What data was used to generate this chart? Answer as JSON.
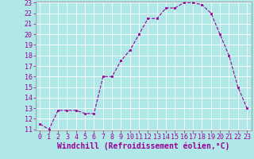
{
  "x": [
    0,
    1,
    2,
    3,
    4,
    5,
    6,
    7,
    8,
    9,
    10,
    11,
    12,
    13,
    14,
    15,
    16,
    17,
    18,
    19,
    20,
    21,
    22,
    23
  ],
  "y": [
    11.5,
    11.0,
    12.8,
    12.8,
    12.8,
    12.5,
    12.5,
    16.0,
    16.0,
    17.5,
    18.5,
    20.0,
    21.5,
    21.5,
    22.5,
    22.5,
    23.0,
    23.0,
    22.8,
    22.0,
    20.0,
    18.0,
    15.0,
    13.0
  ],
  "xlabel": "Windchill (Refroidissement éolien,°C)",
  "ylim_min": 11,
  "ylim_max": 23,
  "xlim_min": -0.5,
  "xlim_max": 23.5,
  "yticks": [
    11,
    12,
    13,
    14,
    15,
    16,
    17,
    18,
    19,
    20,
    21,
    22,
    23
  ],
  "xticks": [
    0,
    1,
    2,
    3,
    4,
    5,
    6,
    7,
    8,
    9,
    10,
    11,
    12,
    13,
    14,
    15,
    16,
    17,
    18,
    19,
    20,
    21,
    22,
    23
  ],
  "line_color": "#990099",
  "marker_color": "#990099",
  "bg_color": "#b0e8e8",
  "grid_color": "#ffffff",
  "tick_color": "#990099",
  "xlabel_color": "#990099",
  "xlabel_fontsize": 7.0,
  "tick_fontsize": 6.0
}
